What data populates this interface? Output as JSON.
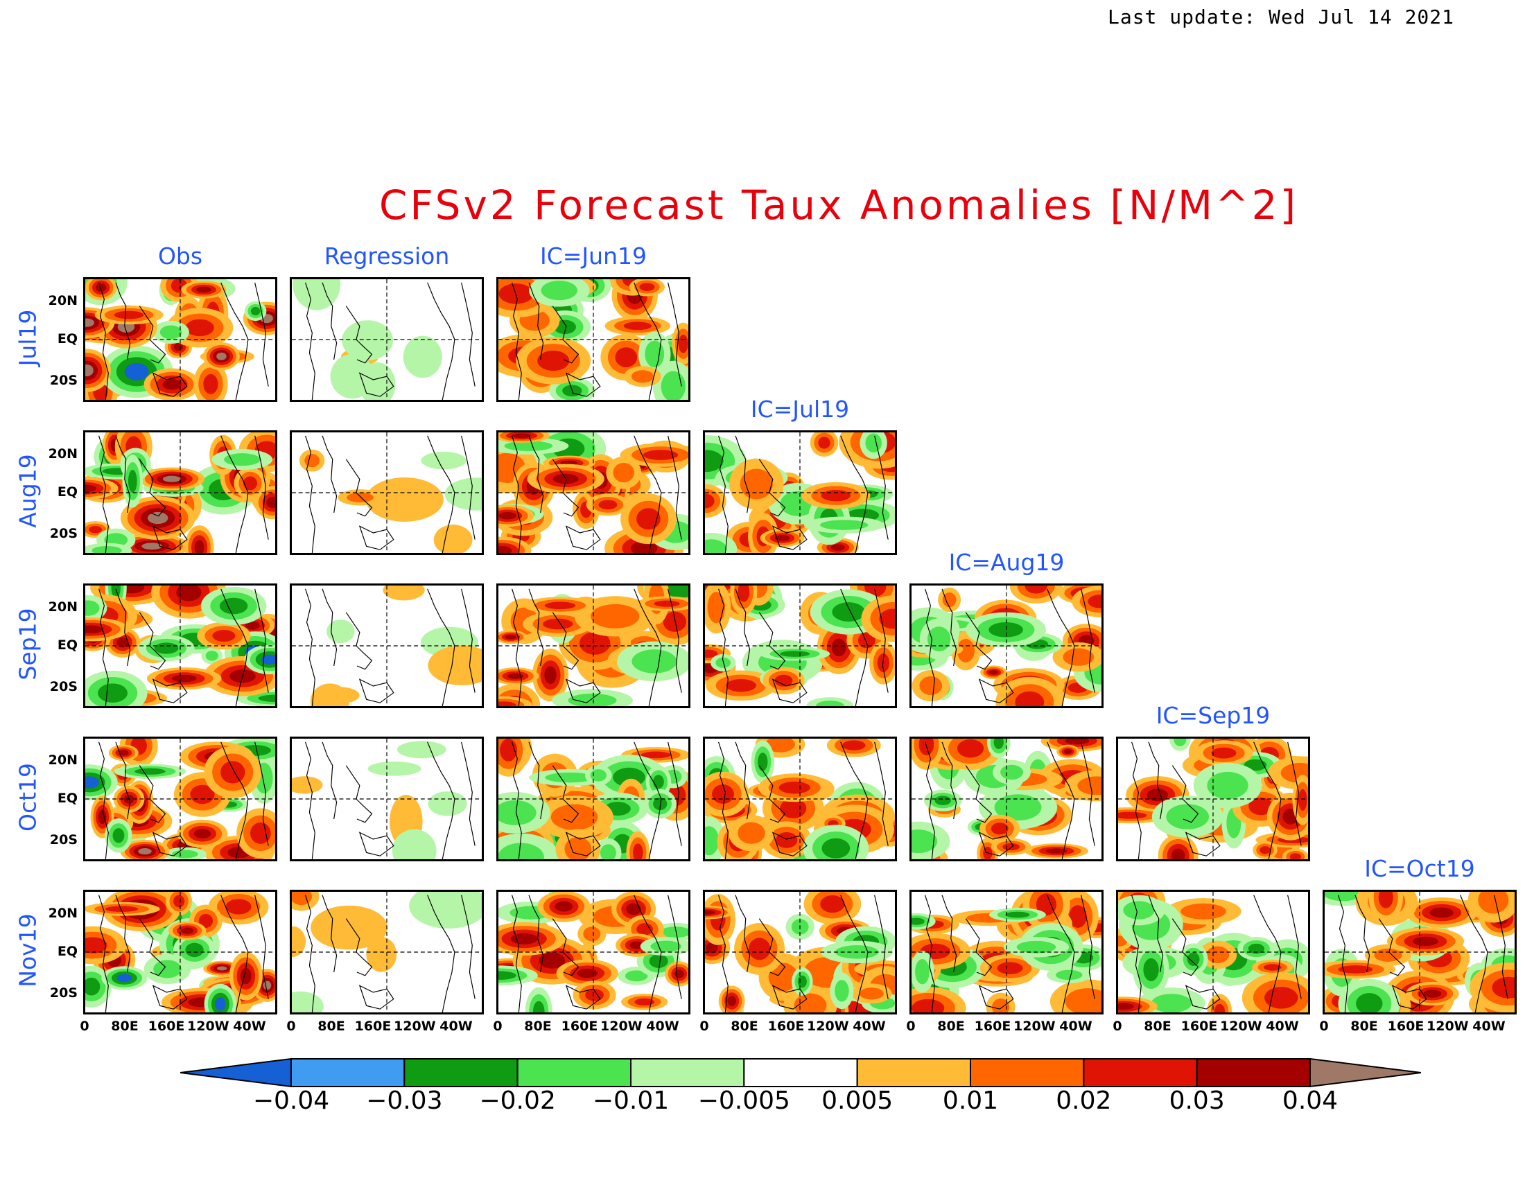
{
  "header": {
    "last_update": "Last update: Wed Jul 14 2021",
    "title": "CFSv2 Forecast Taux Anomalies [N/M^2]"
  },
  "columns": [
    "Obs",
    "Regression",
    "IC=Jun19",
    "IC=Jul19",
    "IC=Aug19",
    "IC=Sep19",
    "IC=Oct19"
  ],
  "rows": [
    "Jul19",
    "Aug19",
    "Sep19",
    "Oct19",
    "Nov19"
  ],
  "y_axis": {
    "ticks": [
      "20N",
      "EQ",
      "20S"
    ]
  },
  "x_axis": {
    "ticks": [
      "0",
      "80E",
      "160E",
      "120W",
      "40W"
    ]
  },
  "colorbar": {
    "labels": [
      "−0.04",
      "−0.03",
      "−0.02",
      "−0.01",
      "−0.005",
      "0.005",
      "0.01",
      "0.02",
      "0.03",
      "0.04"
    ],
    "colors": [
      "#1560d4",
      "#3f9cf0",
      "#0f9b12",
      "#4be34f",
      "#b5f5a7",
      "#ffffff",
      "#ffbb35",
      "#ff6600",
      "#e01405",
      "#a50000",
      "#a07868"
    ]
  },
  "fill_palette": {
    "neg_strong": "#1560d4",
    "neg_mid": "#0f9b12",
    "neg_weak": "#4be34f",
    "neg_faint": "#b5f5a7",
    "pos_faint": "#ffbb35",
    "pos_weak": "#ff6600",
    "pos_mid": "#e01405",
    "pos_strong": "#a50000",
    "pos_extreme": "#a07868"
  }
}
